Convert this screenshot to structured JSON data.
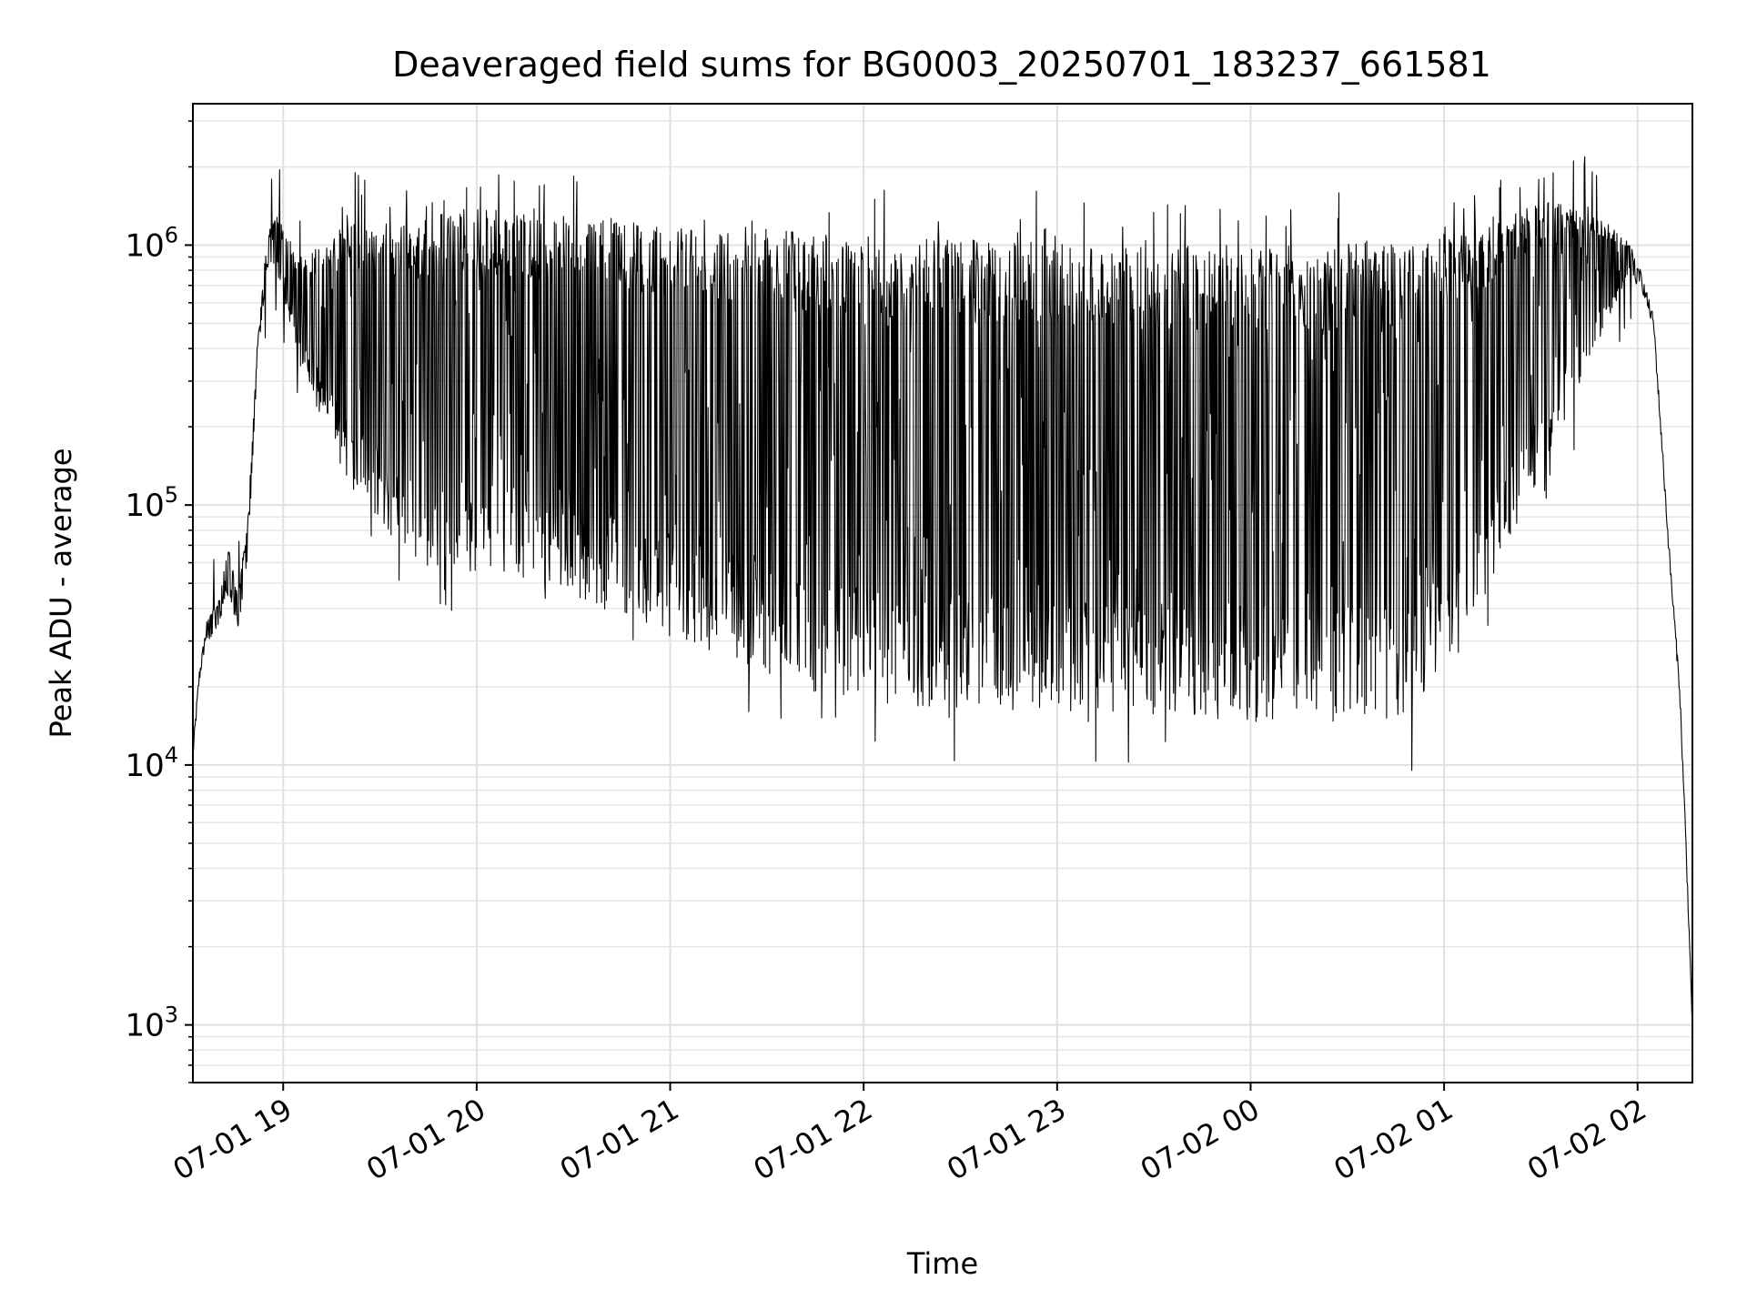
{
  "chart_data": {
    "type": "line",
    "title": "Deaveraged field sums for BG0003_20250701_183237_661581",
    "xlabel": "Time",
    "ylabel": "Peak ADU - average",
    "yscale": "log",
    "grid": true,
    "legend": "none",
    "xlim": [
      "2025-07-01 18:32",
      "2025-07-02 02:17"
    ],
    "ylim": [
      600,
      3500000
    ],
    "x_ticks": [
      {
        "value": "2025-07-01 19:00",
        "label": "07-01 19"
      },
      {
        "value": "2025-07-01 20:00",
        "label": "07-01 20"
      },
      {
        "value": "2025-07-01 21:00",
        "label": "07-01 21"
      },
      {
        "value": "2025-07-01 22:00",
        "label": "07-01 22"
      },
      {
        "value": "2025-07-01 23:00",
        "label": "07-01 23"
      },
      {
        "value": "2025-07-02 00:00",
        "label": "07-02 00"
      },
      {
        "value": "2025-07-02 01:00",
        "label": "07-02 01"
      },
      {
        "value": "2025-07-02 02:00",
        "label": "07-02 02"
      }
    ],
    "y_ticks": [
      {
        "value": 1000,
        "base": "10",
        "exp": "3"
      },
      {
        "value": 10000,
        "base": "10",
        "exp": "4"
      },
      {
        "value": 100000,
        "base": "10",
        "exp": "5"
      },
      {
        "value": 1000000,
        "base": "10",
        "exp": "6"
      }
    ],
    "line_color": "#000000",
    "series": [
      {
        "x": [
          "2025-07-01 18:32",
          "2025-07-01 18:34",
          "2025-07-01 18:37",
          "2025-07-01 18:40",
          "2025-07-01 18:43",
          "2025-07-01 18:46",
          "2025-07-01 18:49",
          "2025-07-01 18:52",
          "2025-07-01 18:55",
          "2025-07-01 18:58",
          "2025-07-01 19:05",
          "2025-07-01 19:20",
          "2025-07-01 19:40",
          "2025-07-01 19:55",
          "2025-07-01 20:10",
          "2025-07-01 20:30",
          "2025-07-01 20:50",
          "2025-07-01 21:20",
          "2025-07-01 21:50",
          "2025-07-01 22:20",
          "2025-07-01 22:50",
          "2025-07-01 23:20",
          "2025-07-01 23:50",
          "2025-07-02 00:20",
          "2025-07-02 00:50",
          "2025-07-02 01:15",
          "2025-07-02 01:30",
          "2025-07-02 01:45",
          "2025-07-02 01:58",
          "2025-07-02 02:05",
          "2025-07-02 02:10",
          "2025-07-02 02:13",
          "2025-07-02 02:15",
          "2025-07-02 02:17"
        ],
        "upper": [
          11000,
          22000,
          38000,
          42000,
          70000,
          45000,
          90000,
          400000,
          1100000,
          1300000,
          900000,
          1200000,
          1250000,
          1400000,
          1350000,
          1300000,
          1250000,
          1200000,
          1100000,
          1050000,
          1050000,
          1000000,
          1000000,
          1000000,
          1050000,
          1200000,
          1500000,
          1400000,
          1000000,
          500000,
          60000,
          20000,
          5000,
          1000
        ],
        "lower": [
          11000,
          22000,
          30000,
          35000,
          45000,
          32000,
          60000,
          350000,
          800000,
          800000,
          350000,
          120000,
          60000,
          55000,
          55000,
          45000,
          35000,
          25000,
          18000,
          16000,
          16000,
          16000,
          15000,
          14000,
          15000,
          50000,
          130000,
          350000,
          800000,
          450000,
          55000,
          18000,
          4500,
          1000
        ]
      }
    ]
  }
}
